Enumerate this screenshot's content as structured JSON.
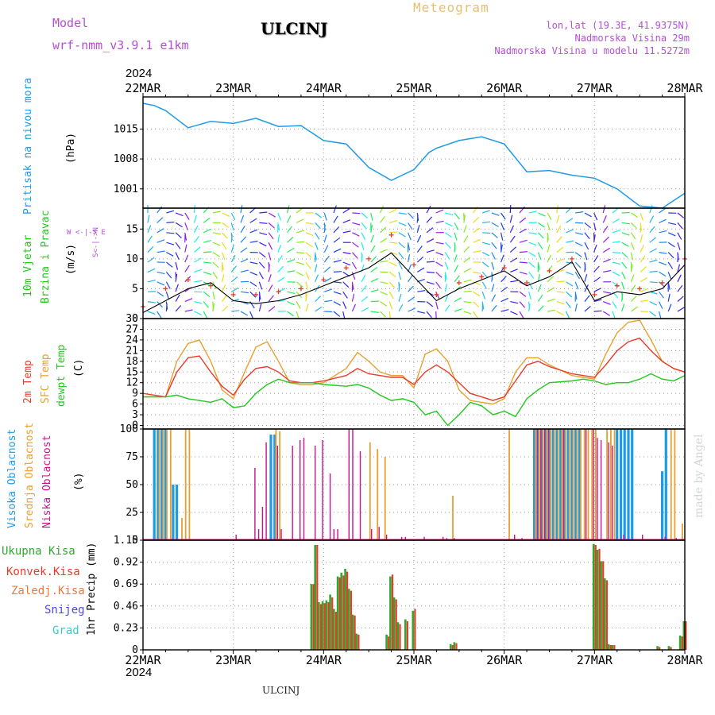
{
  "header": {
    "model_label": "Model",
    "model_value": "wrf-nmm_v3.9.1 e1km",
    "station": "ULCINJ",
    "meteogram": "Meteogram",
    "lonlat": "lon,lat (19.3E, 41.9375N)",
    "altitude": "Nadmorska Visina 29m",
    "model_altitude": "Nadmorska Visina u modelu 11.5272m",
    "year_top": "2024",
    "year_bottom": "2024",
    "footer_station": "ULCINJ",
    "credit": "made by Angel"
  },
  "time_axis": {
    "labels": [
      "22MAR",
      "23MAR",
      "24MAR",
      "25MAR",
      "26MAR",
      "27MAR",
      "28MAR"
    ]
  },
  "colors": {
    "pressure": "#1e9be6",
    "wind_speed": "#000000",
    "wind_gust": "#e83c2a",
    "temp2m": "#e83c2a",
    "sfc_temp": "#e8a030",
    "dewpoint": "#22c81e",
    "high_cloud": "#1e9be6",
    "mid_cloud": "#e8a030",
    "low_cloud": "#c8148c",
    "total_precip": "#2ea82e",
    "conv_precip": "#e83c2a"
  },
  "chart_data": [
    {
      "type": "line",
      "panel": "pressure",
      "ylabel_left": "Pritisak na nivou mora",
      "ylabel_right": "(hPa)",
      "ytick_labels": [
        "1015",
        "1008",
        "1001"
      ],
      "ylim": [
        996.5,
        1022.5
      ],
      "grid": true,
      "x_hours": [
        0,
        3,
        6,
        12,
        18,
        24,
        30,
        36,
        42,
        48,
        54,
        60,
        66,
        72,
        76,
        78,
        84,
        90,
        96,
        102,
        108,
        114,
        120,
        126,
        132,
        138,
        144
      ],
      "series": [
        {
          "values": [
            1021,
            1020.5,
            1019.3,
            1015.3,
            1016.8,
            1016.3,
            1017.5,
            1015.6,
            1015.8,
            1012.3,
            1011.5,
            1006,
            1003,
            1005.5,
            1009.5,
            1010.5,
            1012.3,
            1013.2,
            1011.5,
            1005,
            1005.3,
            1004.2,
            1003.5,
            1001,
            997,
            996.5,
            1000
          ]
        }
      ]
    },
    {
      "type": "line",
      "panel": "wind",
      "ylabel_left": [
        "10m Vjetar",
        "Brzina i Pravac"
      ],
      "ylabel_right": "(m/s)",
      "compass": "W <-|-> E",
      "compass_vertical": "S<-|->N",
      "ytick_labels": [
        "15",
        "10",
        "5",
        "0"
      ],
      "ylim": [
        0,
        18.5
      ],
      "grid": true,
      "x_hours": [
        0,
        6,
        12,
        18,
        24,
        30,
        36,
        42,
        48,
        54,
        60,
        66,
        72,
        78,
        84,
        90,
        96,
        102,
        108,
        114,
        120,
        126,
        132,
        138,
        144
      ],
      "series": [
        {
          "name": "speed",
          "values": [
            1,
            3,
            5,
            6,
            3,
            2.5,
            3,
            4,
            5.5,
            7,
            8.5,
            11,
            7,
            3,
            5,
            6.5,
            8,
            5.5,
            7,
            9.5,
            3,
            4.5,
            4,
            5,
            9
          ]
        },
        {
          "name": "gust",
          "values": [
            2,
            5,
            6.5,
            5.5,
            4,
            4,
            4.5,
            5,
            6.5,
            8.5,
            10,
            14,
            9,
            4,
            6,
            7,
            8.5,
            6,
            8,
            10,
            4,
            5.5,
            5,
            6,
            10
          ]
        }
      ]
    },
    {
      "type": "line",
      "panel": "temperature",
      "ylabel_left": [
        "2m Temp",
        "SFC Temp",
        "dewpt Temp"
      ],
      "ylabel_right": "(C)",
      "ytick_labels": [
        "30",
        "27",
        "24",
        "21",
        "18",
        "15",
        "12",
        "9",
        "6",
        "3",
        "0"
      ],
      "ylim": [
        -1,
        30
      ],
      "grid": true,
      "x_hours": [
        0,
        6,
        9,
        12,
        15,
        18,
        21,
        24,
        27,
        30,
        33,
        36,
        39,
        42,
        45,
        48,
        54,
        57,
        60,
        63,
        66,
        69,
        72,
        75,
        78,
        81,
        84,
        87,
        90,
        93,
        96,
        99,
        102,
        105,
        108,
        114,
        117,
        120,
        123,
        126,
        129,
        132,
        135,
        138,
        141,
        144
      ],
      "series": [
        {
          "name": "2m Temp",
          "values": [
            9,
            8,
            15,
            19,
            19.5,
            15,
            11,
            8.5,
            13,
            16,
            16.5,
            15,
            12.5,
            12,
            12,
            12.5,
            14,
            16,
            14.5,
            14,
            13.5,
            13.5,
            11.5,
            15,
            17,
            15,
            12,
            9,
            8,
            7,
            8,
            12.5,
            17,
            18,
            16.5,
            14.5,
            14,
            13.5,
            17,
            21,
            23.5,
            24.5,
            21,
            18,
            16,
            15
          ]
        },
        {
          "name": "SFC Temp",
          "values": [
            8,
            8,
            18,
            23,
            24,
            18,
            10,
            7.5,
            15,
            22,
            23.5,
            18,
            12,
            11.5,
            11.5,
            12,
            16,
            20.5,
            18,
            15,
            14,
            14,
            10.5,
            20,
            21.5,
            18,
            10,
            7,
            6.5,
            6,
            7.5,
            15,
            19,
            19,
            17,
            14,
            13.5,
            13,
            20,
            26,
            29,
            29.5,
            24,
            18,
            16,
            15
          ]
        },
        {
          "name": "dewpt Temp",
          "values": [
            8,
            8,
            8.5,
            7.5,
            7,
            6.5,
            7.5,
            5,
            5.5,
            9,
            11.5,
            13,
            12,
            12,
            12,
            11.5,
            11,
            11.5,
            10.5,
            8.5,
            7,
            7.5,
            6.5,
            3,
            4,
            0,
            3,
            6.5,
            5.5,
            3,
            4,
            2.5,
            7.5,
            10,
            12,
            12.5,
            13,
            12.5,
            11.5,
            12,
            12,
            13,
            14.5,
            13,
            12.5,
            14
          ]
        }
      ]
    },
    {
      "type": "bar",
      "panel": "clouds",
      "ylabel_left": [
        "Visoka Oblacnost",
        "Srednja Oblacnost",
        "Niska Oblacnost"
      ],
      "ylabel_right": "(%)",
      "ytick_labels": [
        "100",
        "75",
        "50",
        "25",
        "0"
      ],
      "ylim": [
        0,
        100
      ],
      "grid": true,
      "series": [
        {
          "name": "Visoka Oblacnost",
          "x_hours": [
            3,
            4,
            5,
            6,
            8,
            9,
            34,
            35,
            104,
            105,
            106,
            107,
            108,
            109,
            110,
            111,
            112,
            113,
            114,
            115,
            116,
            126,
            127,
            128,
            129,
            130,
            138,
            139
          ],
          "values": [
            100,
            100,
            100,
            100,
            50,
            50,
            95,
            95,
            100,
            100,
            100,
            100,
            100,
            100,
            100,
            100,
            100,
            100,
            100,
            100,
            100,
            100,
            100,
            100,
            100,
            100,
            62,
            100
          ]
        },
        {
          "name": "Srednja Oblacnost",
          "x_hours": [
            4,
            5,
            6,
            7,
            10,
            11,
            12,
            35,
            36,
            60,
            62,
            64,
            82,
            97,
            104,
            105,
            106,
            107,
            108,
            109,
            110,
            111,
            112,
            113,
            114,
            115,
            116,
            117,
            118,
            119,
            120,
            123,
            124,
            125,
            140,
            141,
            143
          ],
          "values": [
            100,
            100,
            100,
            100,
            20,
            100,
            100,
            100,
            98,
            88,
            82,
            75,
            40,
            100,
            100,
            100,
            100,
            100,
            100,
            100,
            100,
            100,
            100,
            100,
            100,
            100,
            100,
            100,
            100,
            100,
            100,
            100,
            100,
            100,
            100,
            100,
            15
          ]
        },
        {
          "name": "Niska Oblacnost",
          "x_hours": [
            25,
            30,
            31,
            32,
            33,
            36,
            37,
            40,
            42,
            43,
            46,
            48,
            50,
            51,
            52,
            55,
            56,
            58,
            61,
            63,
            65,
            69,
            70,
            75,
            80,
            81,
            83,
            99,
            101,
            105,
            106,
            107,
            108,
            112,
            118,
            120,
            121,
            122,
            124,
            125,
            128,
            133,
            139,
            142
          ],
          "values": [
            5,
            65,
            10,
            30,
            88,
            85,
            10,
            85,
            90,
            92,
            85,
            90,
            60,
            10,
            10,
            100,
            100,
            80,
            10,
            12,
            5,
            3,
            3,
            3,
            3,
            2,
            2,
            5,
            2,
            100,
            100,
            100,
            100,
            100,
            100,
            100,
            92,
            90,
            88,
            85,
            5,
            5,
            3,
            2
          ]
        }
      ]
    },
    {
      "type": "bar",
      "panel": "precipitation",
      "legend": [
        "Ukupna Kisa",
        "Konvek.Kisa",
        "Zaledj.Kisa",
        "Snijeg",
        "Grad"
      ],
      "ylabel_right": "1hr Precip (mm)",
      "ytick_labels": [
        "1.15",
        "0.92",
        "0.69",
        "0.46",
        "0.23",
        "0"
      ],
      "ylim": [
        0,
        1.15
      ],
      "grid": true,
      "series": [
        {
          "name": "Ukupna Kisa",
          "x_hours": [
            45,
            46,
            47,
            48,
            49,
            50,
            51,
            52,
            53,
            54,
            55,
            56,
            57,
            65,
            66,
            67,
            68,
            70,
            72,
            82,
            83,
            120,
            121,
            122,
            123,
            124,
            125,
            137,
            140,
            143,
            144
          ],
          "values": [
            0.69,
            1.1,
            0.5,
            0.51,
            0.52,
            0.58,
            0.43,
            0.77,
            0.81,
            0.85,
            0.64,
            0.37,
            0.17,
            0.16,
            0.77,
            0.55,
            0.29,
            0.32,
            0.41,
            0.06,
            0.08,
            1.11,
            1.05,
            0.93,
            0.75,
            0.06,
            0.05,
            0.04,
            0.04,
            0.15,
            0.3
          ]
        },
        {
          "name": "Konvek.Kisa",
          "x_hours": [
            45,
            46,
            47,
            48,
            49,
            50,
            51,
            52,
            53,
            54,
            55,
            56,
            57,
            65,
            66,
            67,
            68,
            70,
            72,
            82,
            83,
            120,
            121,
            122,
            123,
            124,
            125,
            137,
            140,
            143,
            144
          ],
          "values": [
            0.69,
            1.1,
            0.48,
            0.49,
            0.5,
            0.55,
            0.4,
            0.76,
            0.78,
            0.82,
            0.62,
            0.36,
            0.16,
            0.14,
            0.79,
            0.53,
            0.27,
            0.3,
            0.43,
            0.05,
            0.07,
            1.1,
            1.06,
            0.93,
            0.73,
            0.05,
            0.05,
            0.03,
            0.03,
            0.14,
            0.3
          ]
        }
      ]
    }
  ]
}
